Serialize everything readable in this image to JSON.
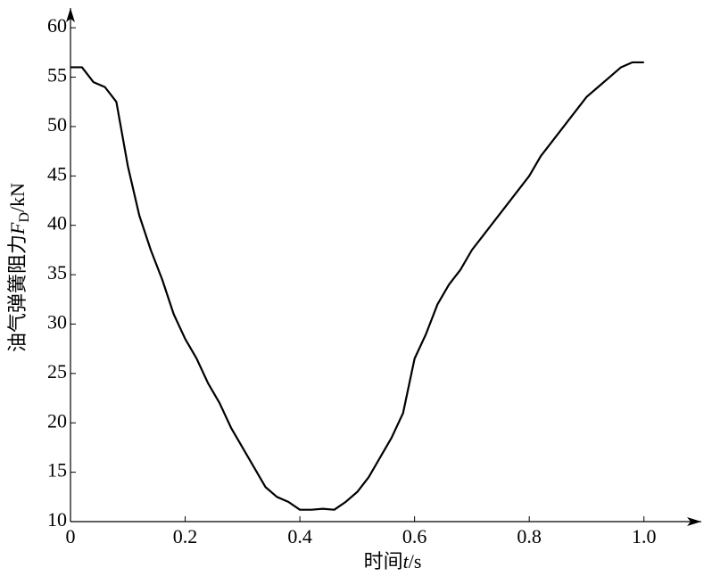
{
  "chart_data": {
    "type": "line",
    "xlabel": [
      "时间",
      "t",
      "/s"
    ],
    "ylabel": [
      "油气弹簧阻力",
      "F",
      "D",
      "/kN"
    ],
    "x": [
      0,
      0.02,
      0.04,
      0.06,
      0.08,
      0.1,
      0.12,
      0.14,
      0.16,
      0.18,
      0.2,
      0.22,
      0.24,
      0.26,
      0.28,
      0.3,
      0.32,
      0.34,
      0.36,
      0.38,
      0.4,
      0.42,
      0.44,
      0.46,
      0.48,
      0.5,
      0.52,
      0.54,
      0.56,
      0.58,
      0.6,
      0.62,
      0.64,
      0.66,
      0.68,
      0.7,
      0.72,
      0.74,
      0.76,
      0.78,
      0.8,
      0.82,
      0.84,
      0.86,
      0.88,
      0.9,
      0.92,
      0.94,
      0.96,
      0.98,
      1.0
    ],
    "series": [
      {
        "color": "#000000",
        "values": [
          56,
          56,
          54.5,
          54,
          52.5,
          46,
          41,
          37.5,
          34.5,
          31,
          28.5,
          26.5,
          24,
          22,
          19.5,
          17.5,
          15.5,
          13.5,
          12.5,
          12,
          11.2,
          11.2,
          11.3,
          11.2,
          12,
          13,
          14.5,
          16.5,
          18.5,
          21,
          26.5,
          29,
          32,
          34,
          35.5,
          37.5,
          39,
          40.5,
          42,
          43.5,
          45,
          47,
          48.5,
          50,
          51.5,
          53,
          54,
          55,
          56,
          56.5,
          56.5
        ]
      }
    ],
    "xlim": [
      0,
      1.1
    ],
    "ylim": [
      10,
      62
    ],
    "xticks": [
      0,
      0.2,
      0.4,
      0.6,
      0.8,
      {
        "value": 1,
        "label": "1.0"
      }
    ],
    "yticks": [
      10,
      15,
      20,
      25,
      30,
      35,
      40,
      45,
      50,
      55,
      60
    ],
    "grid": false
  }
}
